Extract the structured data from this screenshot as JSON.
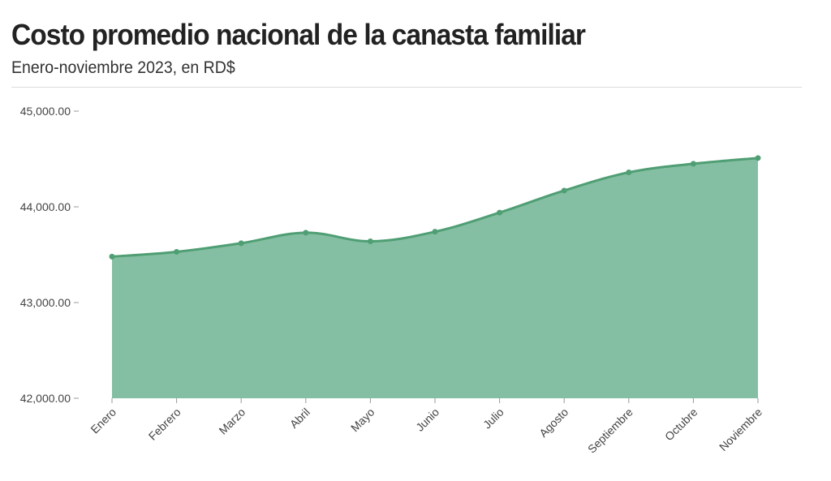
{
  "header": {
    "title": "Costo promedio nacional de la canasta familiar",
    "subtitle": "Enero-noviembre 2023, en RD$"
  },
  "chart_data": {
    "type": "area",
    "title": "Costo promedio nacional de la canasta familiar",
    "subtitle": "Enero-noviembre 2023, en RD$",
    "xlabel": "",
    "ylabel": "",
    "categories": [
      "Enero",
      "Febrero",
      "Marzo",
      "Abril",
      "Mayo",
      "Junio",
      "Julio",
      "Agosto",
      "Septiembre",
      "Octubre",
      "Noviembre"
    ],
    "values": [
      43480,
      43530,
      43620,
      43730,
      43640,
      43740,
      43940,
      44170,
      44360,
      44450,
      44510
    ],
    "ylim": [
      42000,
      45000
    ],
    "yticks": [
      "42,000.00",
      "43,000.00",
      "44,000.00",
      "45,000.00"
    ],
    "ytick_values": [
      42000,
      43000,
      44000,
      45000
    ],
    "grid": false,
    "legend": "none",
    "colors": {
      "fill": "#85bfa3",
      "line": "#4f9e74",
      "marker": "#4f9e74"
    }
  }
}
